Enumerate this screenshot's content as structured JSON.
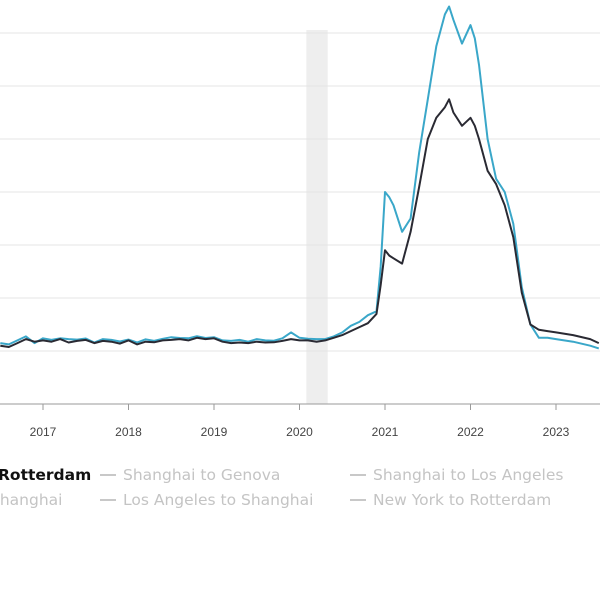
{
  "chart_data": {
    "type": "line",
    "title": "",
    "xlabel": "",
    "ylabel": "",
    "x_ticks": [
      "2017",
      "2018",
      "2019",
      "2020",
      "2021",
      "2022",
      "2023"
    ],
    "shaded_period": {
      "start": 2020.08,
      "end": 2020.33
    },
    "grid": "horizontal",
    "series": [
      {
        "name": "",
        "color": "#3aa7c9",
        "x": [
          2016.5,
          2016.6,
          2016.7,
          2016.8,
          2016.9,
          2017.0,
          2017.1,
          2017.2,
          2017.3,
          2017.4,
          2017.5,
          2017.6,
          2017.7,
          2017.8,
          2017.9,
          2018.0,
          2018.1,
          2018.2,
          2018.3,
          2018.4,
          2018.5,
          2018.6,
          2018.7,
          2018.8,
          2018.9,
          2019.0,
          2019.1,
          2019.2,
          2019.3,
          2019.4,
          2019.5,
          2019.6,
          2019.7,
          2019.8,
          2019.9,
          2020.0,
          2020.1,
          2020.2,
          2020.3,
          2020.4,
          2020.5,
          2020.6,
          2020.7,
          2020.8,
          2020.9,
          2020.95,
          2021.0,
          2021.05,
          2021.1,
          2021.2,
          2021.3,
          2021.4,
          2021.5,
          2021.6,
          2021.7,
          2021.75,
          2021.8,
          2021.9,
          2022.0,
          2022.05,
          2022.1,
          2022.2,
          2022.3,
          2022.4,
          2022.5,
          2022.6,
          2022.7,
          2022.8,
          2022.9,
          2023.0,
          2023.2,
          2023.4,
          2023.5
        ],
        "y": [
          2300,
          2250,
          2400,
          2550,
          2300,
          2480,
          2420,
          2480,
          2450,
          2430,
          2470,
          2320,
          2450,
          2420,
          2360,
          2430,
          2320,
          2440,
          2380,
          2460,
          2520,
          2490,
          2480,
          2560,
          2490,
          2520,
          2400,
          2380,
          2420,
          2350,
          2450,
          2400,
          2390,
          2480,
          2700,
          2500,
          2460,
          2450,
          2450,
          2550,
          2700,
          2950,
          3100,
          3350,
          3500,
          5200,
          8000,
          7800,
          7500,
          6500,
          7000,
          9500,
          11500,
          13500,
          14700,
          15000,
          14500,
          13600,
          14300,
          13800,
          12800,
          10000,
          8500,
          8000,
          6800,
          4400,
          3000,
          2500,
          2500,
          2450,
          2350,
          2200,
          2100
        ]
      },
      {
        "name": "New York to Rotterdam",
        "color": "#2a2a33",
        "x": [
          2016.5,
          2016.6,
          2016.7,
          2016.8,
          2016.9,
          2017.0,
          2017.1,
          2017.2,
          2017.3,
          2017.4,
          2017.5,
          2017.6,
          2017.7,
          2017.8,
          2017.9,
          2018.0,
          2018.1,
          2018.2,
          2018.3,
          2018.4,
          2018.5,
          2018.6,
          2018.7,
          2018.8,
          2018.9,
          2019.0,
          2019.1,
          2019.2,
          2019.3,
          2019.4,
          2019.5,
          2019.6,
          2019.7,
          2019.8,
          2019.9,
          2020.0,
          2020.1,
          2020.2,
          2020.3,
          2020.4,
          2020.5,
          2020.6,
          2020.7,
          2020.8,
          2020.9,
          2020.95,
          2021.0,
          2021.05,
          2021.1,
          2021.2,
          2021.3,
          2021.4,
          2021.5,
          2021.6,
          2021.7,
          2021.75,
          2021.8,
          2021.9,
          2022.0,
          2022.05,
          2022.1,
          2022.2,
          2022.3,
          2022.4,
          2022.5,
          2022.6,
          2022.7,
          2022.8,
          2022.9,
          2023.0,
          2023.2,
          2023.4,
          2023.5
        ],
        "y": [
          2200,
          2150,
          2300,
          2450,
          2350,
          2400,
          2350,
          2450,
          2320,
          2380,
          2420,
          2300,
          2380,
          2350,
          2280,
          2400,
          2250,
          2350,
          2330,
          2400,
          2420,
          2450,
          2400,
          2500,
          2450,
          2480,
          2350,
          2300,
          2320,
          2300,
          2350,
          2320,
          2330,
          2380,
          2450,
          2400,
          2400,
          2350,
          2400,
          2500,
          2600,
          2750,
          2900,
          3050,
          3400,
          4500,
          5800,
          5600,
          5500,
          5300,
          6500,
          8200,
          10000,
          10800,
          11200,
          11500,
          11000,
          10500,
          10800,
          10500,
          10000,
          8800,
          8300,
          7500,
          6300,
          4200,
          3000,
          2800,
          2750,
          2700,
          2600,
          2450,
          2300
        ]
      }
    ],
    "legend": {
      "placement": "bottom",
      "items": [
        {
          "label": "Rotterdam",
          "active": true
        },
        {
          "label": "Shanghai to Genova",
          "active": false
        },
        {
          "label": "Shanghai to Los Angeles",
          "active": false
        },
        {
          "label": "Shanghai",
          "active": false
        },
        {
          "label": "Los Angeles to Shanghai",
          "active": false
        },
        {
          "label": "New York to Rotterdam",
          "active": false
        }
      ]
    }
  }
}
